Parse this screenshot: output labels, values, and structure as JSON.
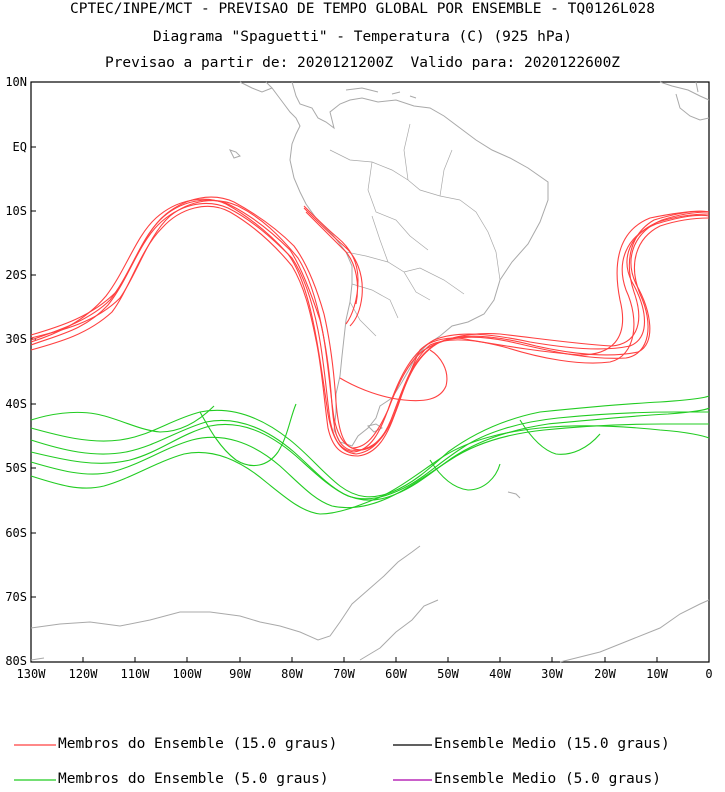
{
  "title": {
    "line1": "CPTEC/INPE/MCT - PREVISAO DE TEMPO GLOBAL POR ENSEMBLE - TQ0126L028",
    "line2": "Diagrama \"Spaguetti\" - Temperatura (C) (925 hPa)",
    "line3": "Previsao a partir de: 2020121200Z  Valido para: 2020122600Z"
  },
  "axes": {
    "lat_labels": [
      "10N",
      "EQ",
      "10S",
      "20S",
      "30S",
      "40S",
      "50S",
      "60S",
      "70S",
      "80S"
    ],
    "lon_labels": [
      "130W",
      "120W",
      "110W",
      "100W",
      "90W",
      "80W",
      "70W",
      "60W",
      "50W",
      "40W",
      "30W",
      "20W",
      "10W",
      "0"
    ]
  },
  "legend": [
    {
      "label": "Membros do Ensemble (15.0 graus)",
      "color": "#ff4040"
    },
    {
      "label": "Ensemble Medio (15.0 graus)",
      "color": "#000000"
    },
    {
      "label": "Membros do Ensemble (5.0 graus)",
      "color": "#22cc22"
    },
    {
      "label": "Ensemble Medio (5.0 graus)",
      "color": "#aa00aa"
    }
  ],
  "colors": {
    "red_members": "#ff4040",
    "green_members": "#22cc22",
    "coastline": "#a9a9a9"
  }
}
